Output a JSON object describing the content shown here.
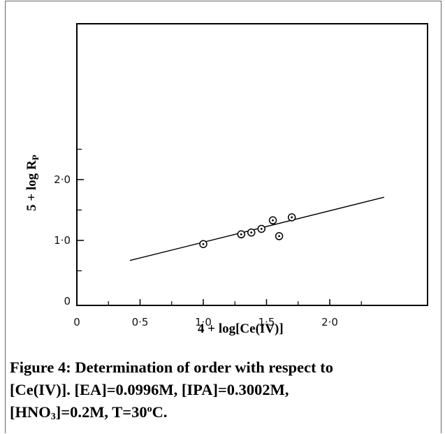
{
  "chart_data": {
    "type": "scatter",
    "xlabel": "4 + log[Ce(IV)]",
    "ylabel_parts": {
      "main": "5 + log R",
      "subscript": "P"
    },
    "xlim": [
      0,
      2.5
    ],
    "ylim": [
      0,
      3.8
    ],
    "x_ticks": [
      {
        "value": 0,
        "label": "0"
      },
      {
        "value": 0.5,
        "label": "0·5"
      },
      {
        "value": 1.0,
        "label": "1·0"
      },
      {
        "value": 1.5,
        "label": "1·5"
      },
      {
        "value": 2.0,
        "label": "2·0"
      }
    ],
    "x_minor_ticks": [
      0.25,
      0.75,
      1.25,
      1.75,
      2.25
    ],
    "y_ticks": [
      {
        "value": 0,
        "label": "0"
      },
      {
        "value": 1.0,
        "label": "1·0"
      },
      {
        "value": 2.0,
        "label": "2·0"
      }
    ],
    "y_minor_ticks": [
      0.5,
      1.5,
      2.5
    ],
    "grid": false,
    "series": [
      {
        "marker": "open-circle-dot",
        "points": [
          {
            "x": 1.0,
            "y": 0.94
          },
          {
            "x": 1.3,
            "y": 1.1
          },
          {
            "x": 1.38,
            "y": 1.13
          },
          {
            "x": 1.46,
            "y": 1.19
          },
          {
            "x": 1.55,
            "y": 1.33
          },
          {
            "x": 1.6,
            "y": 1.07
          },
          {
            "x": 1.7,
            "y": 1.38
          }
        ]
      }
    ],
    "fit_line": {
      "x": [
        0.42,
        2.43
      ],
      "y": [
        0.67,
        1.71
      ]
    }
  },
  "caption": {
    "line1": "Figure 4: Determination of order with respect to",
    "line2": "[Ce(IV)].  [EA]=0.0996M,  [IPA]=0.3002M,",
    "line3_a": "[HNO",
    "line3_sub": "3",
    "line3_b": "]=0.2M,  T=30",
    "line3_sup": "o",
    "line3_c": "C."
  }
}
